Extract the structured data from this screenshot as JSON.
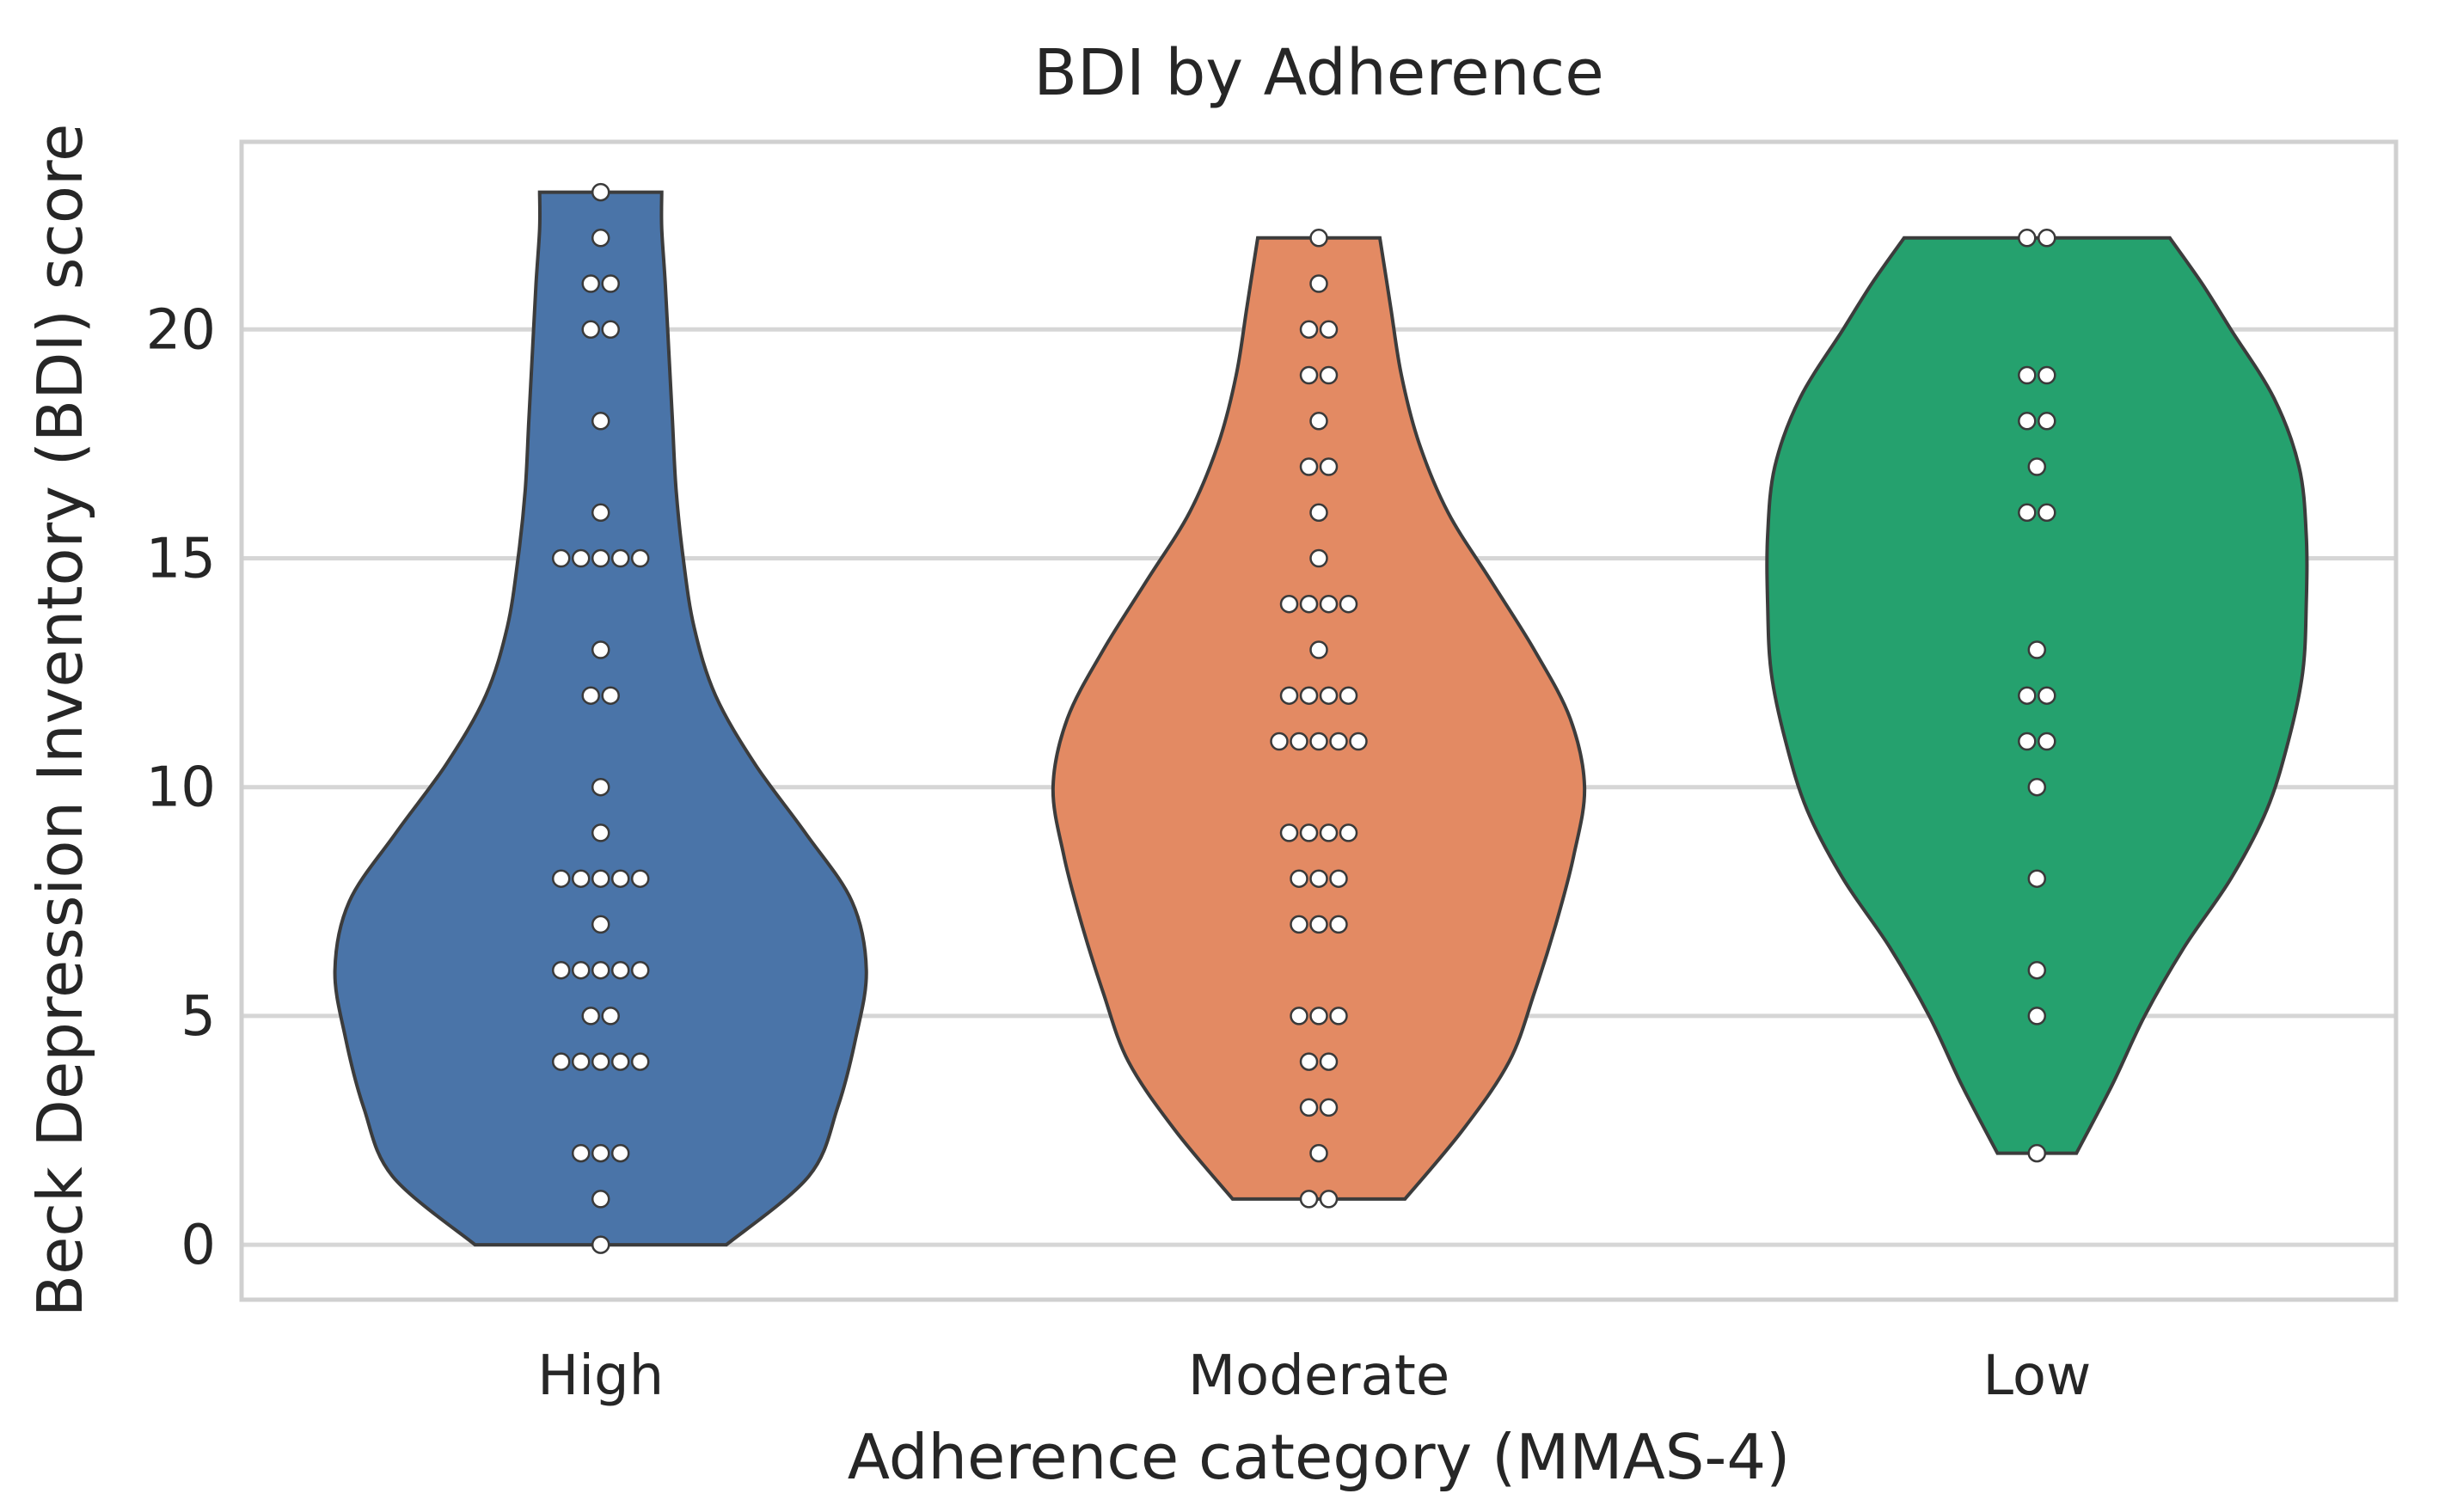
{
  "chart_data": {
    "type": "violin",
    "title": "BDI by Adherence",
    "xlabel": "Adherence category (MMAS-4)",
    "ylabel": "Beck Depression Inventory (BDI) score",
    "ylim": [
      -1.2,
      24.1
    ],
    "yticks": [
      0,
      5,
      10,
      15,
      20
    ],
    "grid": true,
    "categories": [
      "High",
      "Moderate",
      "Low"
    ],
    "series": [
      {
        "name": "High",
        "color": "#4a74a8",
        "points": [
          0,
          1,
          2,
          2,
          2,
          4,
          4,
          4,
          4,
          4,
          5,
          5,
          6,
          6,
          6,
          6,
          6,
          7,
          8,
          8,
          8,
          8,
          8,
          9,
          10,
          12,
          12,
          13,
          15,
          15,
          15,
          15,
          15,
          16,
          18,
          20,
          20,
          21,
          21,
          22,
          23
        ],
        "violin_halfwidth": [
          [
            0,
            0.175
          ],
          [
            1.5,
            0.29
          ],
          [
            3,
            0.33
          ],
          [
            4.5,
            0.355
          ],
          [
            6,
            0.37
          ],
          [
            7.5,
            0.35
          ],
          [
            9,
            0.285
          ],
          [
            10.5,
            0.215
          ],
          [
            12,
            0.16
          ],
          [
            13.5,
            0.13
          ],
          [
            15,
            0.115
          ],
          [
            16.5,
            0.105
          ],
          [
            18,
            0.1
          ],
          [
            19.5,
            0.095
          ],
          [
            21,
            0.09
          ],
          [
            22.2,
            0.085
          ],
          [
            23,
            0.085
          ]
        ]
      },
      {
        "name": "Moderate",
        "color": "#e38a63",
        "points": [
          1,
          1,
          2,
          3,
          3,
          4,
          4,
          5,
          5,
          5,
          7,
          7,
          7,
          8,
          8,
          8,
          9,
          9,
          9,
          9,
          11,
          11,
          11,
          11,
          11,
          12,
          12,
          12,
          12,
          13,
          14,
          14,
          14,
          14,
          15,
          16,
          17,
          17,
          18,
          19,
          19,
          20,
          20,
          21,
          22
        ],
        "violin_halfwidth": [
          [
            1,
            0.12
          ],
          [
            2.5,
            0.2
          ],
          [
            4,
            0.265
          ],
          [
            5.5,
            0.3
          ],
          [
            7,
            0.33
          ],
          [
            8.5,
            0.355
          ],
          [
            10,
            0.37
          ],
          [
            11.5,
            0.35
          ],
          [
            13,
            0.3
          ],
          [
            14.5,
            0.24
          ],
          [
            16,
            0.18
          ],
          [
            17.5,
            0.14
          ],
          [
            19,
            0.115
          ],
          [
            20.5,
            0.1
          ],
          [
            22,
            0.085
          ]
        ]
      },
      {
        "name": "Low",
        "color": "#25a16e",
        "points": [
          2,
          5,
          6,
          8,
          10,
          11,
          11,
          12,
          12,
          13,
          16,
          16,
          17,
          18,
          18,
          19,
          19,
          22,
          22
        ],
        "violin_halfwidth": [
          [
            2,
            0.055
          ],
          [
            3.5,
            0.105
          ],
          [
            5,
            0.15
          ],
          [
            6.5,
            0.205
          ],
          [
            8,
            0.27
          ],
          [
            9.5,
            0.32
          ],
          [
            11,
            0.35
          ],
          [
            12.5,
            0.37
          ],
          [
            14,
            0.375
          ],
          [
            15.5,
            0.375
          ],
          [
            17,
            0.365
          ],
          [
            18.5,
            0.33
          ],
          [
            20,
            0.27
          ],
          [
            21,
            0.23
          ],
          [
            22,
            0.185
          ]
        ]
      }
    ]
  }
}
